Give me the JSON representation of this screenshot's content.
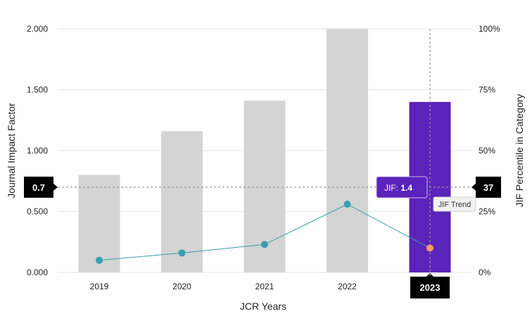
{
  "chart_data": {
    "type": "bar",
    "categories": [
      "2019",
      "2020",
      "2021",
      "2022",
      "2023"
    ],
    "jif_values": [
      0.8,
      1.16,
      1.41,
      2.0,
      1.4
    ],
    "percentile_values": [
      5,
      8,
      11.5,
      28,
      10
    ],
    "xlabel": "JCR Years",
    "ylabel": "Journal Impact Factor",
    "ylabel_right": "JIF Percentile in Category",
    "ylim": [
      0,
      2
    ],
    "ylim_right": [
      0,
      100
    ],
    "y_ticks": [
      "0.000",
      "0.500",
      "1.000",
      "1.500",
      "2.000"
    ],
    "y_tick_values": [
      0,
      0.5,
      1.0,
      1.5,
      2.0
    ],
    "y_ticks_right": [
      "0%",
      "25%",
      "50%",
      "75%",
      "100%"
    ],
    "highlight_index": 4,
    "crosshair_left_label": "0.7",
    "crosshair_left_value": 0.7,
    "crosshair_right_label": "37",
    "tooltip_label": "JIF:",
    "tooltip_value": "1.4",
    "trend_label": "JIF Trend",
    "colors": {
      "bar": "#d3d4d3",
      "bar_highlight": "#5a23b9",
      "line": "#3b9fad",
      "point": "#3b9fad",
      "point_highlight": "#f79b6a",
      "grid": "#e6e6e6",
      "crosshair": "#9a9a9a"
    }
  }
}
